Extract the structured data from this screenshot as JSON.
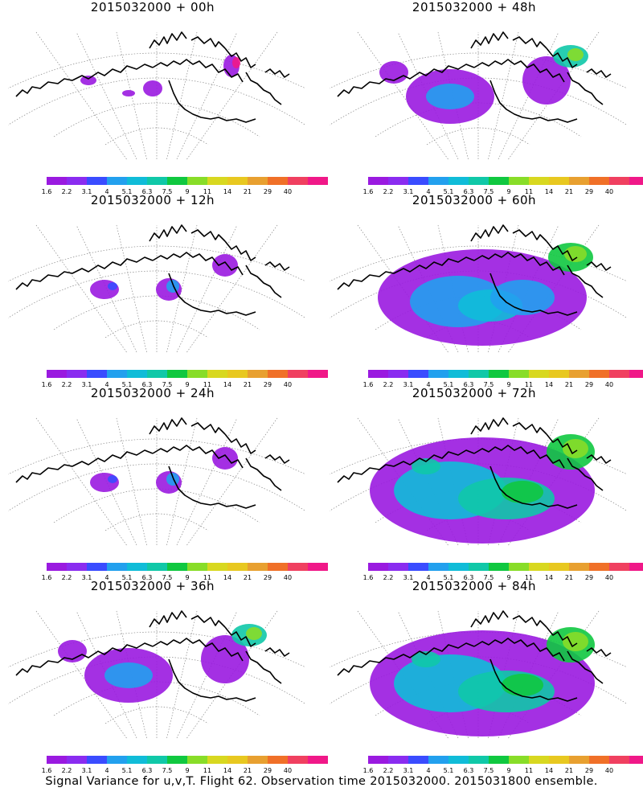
{
  "colorbar": {
    "colors": [
      "#9a1ae0",
      "#8a2cf0",
      "#3a4cff",
      "#22a0ee",
      "#10bcd8",
      "#10c8a8",
      "#10c840",
      "#88dd28",
      "#d8d820",
      "#e8c820",
      "#e8a030",
      "#f07028",
      "#f04060",
      "#f01888"
    ],
    "labels": [
      "1.6",
      "2.2",
      "3.1",
      "4",
      "5.1",
      "6.3",
      "7.5",
      "9",
      "11",
      "14",
      "21",
      "29",
      "40"
    ]
  },
  "panels": [
    {
      "title": "2015032000 + 00h",
      "level": 0
    },
    {
      "title": "2015032000 + 48h",
      "level": 2
    },
    {
      "title": "2015032000 + 12h",
      "level": 1
    },
    {
      "title": "2015032000 + 60h",
      "level": 3
    },
    {
      "title": "2015032000 + 24h",
      "level": 1
    },
    {
      "title": "2015032000 + 72h",
      "level": 4
    },
    {
      "title": "2015032000 + 36h",
      "level": 2
    },
    {
      "title": "2015032000 + 84h",
      "level": 4
    }
  ],
  "footer": "Signal Variance for u,v,T. Flight 62. Observation time 2015032000. 2015031800 ensemble."
}
